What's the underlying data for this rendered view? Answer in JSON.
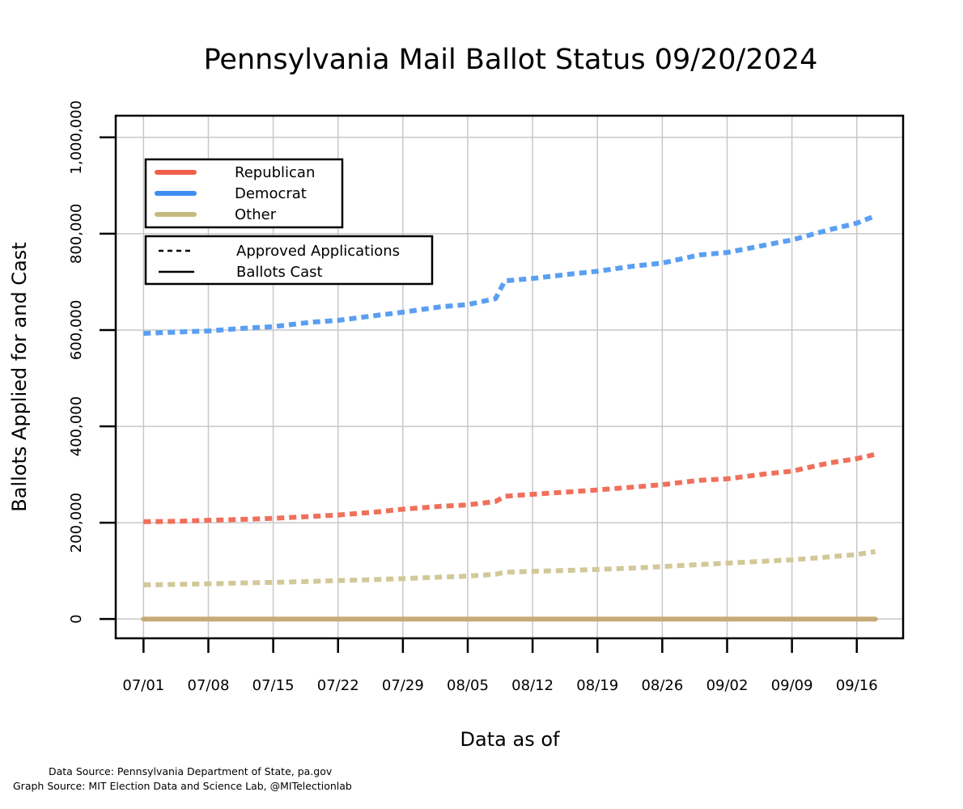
{
  "chart_data": {
    "type": "line",
    "title": "Pennsylvania Mail Ballot Status 09/20/2024",
    "xlabel": "Data as of",
    "ylabel": "Ballots Applied for and Cast",
    "x_tick_labels": [
      "07/01",
      "07/08",
      "07/15",
      "07/22",
      "07/29",
      "08/05",
      "08/12",
      "08/19",
      "08/26",
      "09/02",
      "09/09",
      "09/16"
    ],
    "y_ticks": [
      0,
      200000,
      400000,
      600000,
      800000,
      1000000
    ],
    "y_tick_labels": [
      "0",
      "200,000",
      "400,000",
      "600,000",
      "800,000",
      "1,000,000"
    ],
    "xlim": [
      "2024-06-28",
      "2024-09-21"
    ],
    "ylim": [
      -40000,
      1045000
    ],
    "grid": true,
    "legend_parties": [
      {
        "label": "Republican",
        "color": "#F0604A"
      },
      {
        "label": "Democrat",
        "color": "#3D8EF0"
      },
      {
        "label": "Other",
        "color": "#C6BB7E"
      }
    ],
    "legend_types": [
      {
        "label": "Approved Applications",
        "style": "dashed"
      },
      {
        "label": "Ballots Cast",
        "style": "solid"
      }
    ],
    "series": [
      {
        "name": "Democrat",
        "kind": "Approved Applications",
        "color": "#5A9FF2",
        "dashed": true,
        "x": [
          "2024-07-01",
          "2024-07-05",
          "2024-07-08",
          "2024-07-12",
          "2024-07-15",
          "2024-07-19",
          "2024-07-22",
          "2024-07-26",
          "2024-07-29",
          "2024-08-02",
          "2024-08-05",
          "2024-08-08",
          "2024-08-09",
          "2024-08-12",
          "2024-08-16",
          "2024-08-19",
          "2024-08-23",
          "2024-08-26",
          "2024-08-30",
          "2024-09-02",
          "2024-09-06",
          "2024-09-09",
          "2024-09-13",
          "2024-09-16",
          "2024-09-18"
        ],
        "y": [
          593000,
          596000,
          598000,
          604000,
          607000,
          616000,
          620000,
          630000,
          637000,
          648000,
          653000,
          665000,
          702000,
          707000,
          716000,
          722000,
          733000,
          739000,
          756000,
          761000,
          776000,
          787000,
          808000,
          822000,
          837000
        ]
      },
      {
        "name": "Republican",
        "kind": "Approved Applications",
        "color": "#F0705C",
        "dashed": true,
        "x": [
          "2024-07-01",
          "2024-07-05",
          "2024-07-08",
          "2024-07-12",
          "2024-07-15",
          "2024-07-19",
          "2024-07-22",
          "2024-07-26",
          "2024-07-29",
          "2024-08-02",
          "2024-08-05",
          "2024-08-08",
          "2024-08-09",
          "2024-08-12",
          "2024-08-16",
          "2024-08-19",
          "2024-08-23",
          "2024-08-26",
          "2024-08-30",
          "2024-09-02",
          "2024-09-06",
          "2024-09-09",
          "2024-09-13",
          "2024-09-16",
          "2024-09-18"
        ],
        "y": [
          202000,
          203000,
          205000,
          207000,
          209000,
          213000,
          216000,
          222000,
          228000,
          234000,
          237000,
          244000,
          255000,
          259000,
          264000,
          268000,
          274000,
          279000,
          288000,
          291000,
          301000,
          307000,
          324000,
          333000,
          342000
        ]
      },
      {
        "name": "Other",
        "kind": "Approved Applications",
        "color": "#D2C898",
        "dashed": true,
        "x": [
          "2024-07-01",
          "2024-07-05",
          "2024-07-08",
          "2024-07-12",
          "2024-07-15",
          "2024-07-19",
          "2024-07-22",
          "2024-07-26",
          "2024-07-29",
          "2024-08-02",
          "2024-08-05",
          "2024-08-08",
          "2024-08-09",
          "2024-08-12",
          "2024-08-16",
          "2024-08-19",
          "2024-08-23",
          "2024-08-26",
          "2024-08-30",
          "2024-09-02",
          "2024-09-06",
          "2024-09-09",
          "2024-09-13",
          "2024-09-16",
          "2024-09-18"
        ],
        "y": [
          71000,
          72000,
          73000,
          75000,
          76000,
          78000,
          80000,
          82000,
          84000,
          87000,
          89000,
          93000,
          97000,
          99000,
          101000,
          103000,
          106000,
          109000,
          113000,
          116000,
          120000,
          123000,
          129000,
          134000,
          140000
        ]
      },
      {
        "name": "Other",
        "kind": "Ballots Cast",
        "color": "#C8AA78",
        "dashed": false,
        "x": [
          "2024-07-01",
          "2024-09-18"
        ],
        "y": [
          0,
          0
        ]
      }
    ]
  },
  "footer": {
    "data_source": "Data Source: Pennsylvania Department of State, pa.gov",
    "graph_source": "Graph Source: MIT Election Data and Science Lab, @MITelectionlab"
  }
}
